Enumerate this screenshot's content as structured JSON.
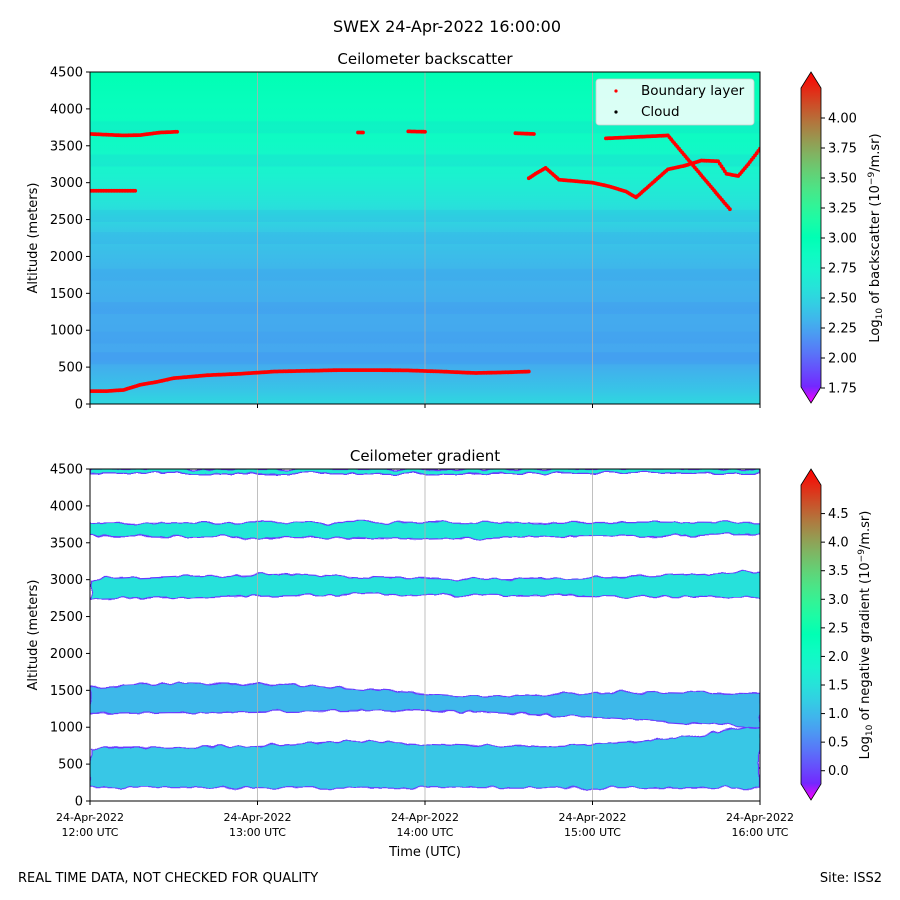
{
  "figure_title": "SWEX 24-Apr-2022 16:00:00",
  "footer_left": "REAL TIME DATA, NOT CHECKED FOR QUALITY",
  "footer_right": "Site: ISS2",
  "chart_data": [
    {
      "type": "heatmap",
      "title": "Ceilometer backscatter",
      "ylabel": "Altitude (meters)",
      "xlabel": "",
      "ylim": [
        0,
        4500
      ],
      "yticks": [
        0,
        500,
        1000,
        1500,
        2000,
        2500,
        3000,
        3500,
        4000,
        4500
      ],
      "xlim_hours_utc": [
        12,
        16
      ],
      "x_tick_hours": [
        12,
        13,
        14,
        15,
        16
      ],
      "x_tick_labels": [],
      "grid_x": true,
      "colorbar": {
        "label_prefix": "Log",
        "label_sub": "10",
        "label_mid": " of backscatter (10",
        "label_exp": "−9",
        "label_suffix": "/m.sr)",
        "range": [
          1.75,
          4.25
        ],
        "ticks": [
          "1.75",
          "2.00",
          "2.25",
          "2.50",
          "2.75",
          "3.00",
          "3.25",
          "3.50",
          "3.75",
          "4.00"
        ]
      },
      "legend": {
        "position": "top-right",
        "entries": [
          {
            "label": "Boundary layer",
            "color": "#ff0000"
          },
          {
            "label": "Cloud",
            "color": "#000000"
          }
        ]
      },
      "field_description": "altitude-dependent log10 backscatter; ~2.3 near surface to ~3.0 at 4500 m",
      "field_profile": [
        [
          0,
          2.55
        ],
        [
          200,
          2.45
        ],
        [
          600,
          2.32
        ],
        [
          1200,
          2.33
        ],
        [
          1800,
          2.38
        ],
        [
          2300,
          2.46
        ],
        [
          2700,
          2.62
        ],
        [
          3100,
          2.74
        ],
        [
          3600,
          2.86
        ],
        [
          4100,
          2.93
        ],
        [
          4500,
          3.0
        ]
      ],
      "series": [
        {
          "name": "Boundary layer (lower)",
          "color": "#ff0000",
          "x_hours": [
            12.0,
            12.1,
            12.2,
            12.3,
            12.4,
            12.5,
            12.7,
            12.9,
            13.1,
            13.3,
            13.5,
            13.7,
            13.9,
            14.1,
            14.3,
            14.5,
            14.62
          ],
          "y_m": [
            175,
            175,
            190,
            260,
            300,
            350,
            390,
            410,
            440,
            450,
            460,
            460,
            455,
            440,
            420,
            430,
            440
          ]
        },
        {
          "name": "Boundary layer (3650 m, early)",
          "color": "#ff0000",
          "x_hours": [
            12.0,
            12.1,
            12.2,
            12.3,
            12.35,
            12.42,
            12.52
          ],
          "y_m": [
            3660,
            3650,
            3640,
            3645,
            3660,
            3680,
            3690
          ]
        },
        {
          "name": "Boundary layer (2900 m, early)",
          "color": "#ff0000",
          "x_hours": [
            12.0,
            12.1,
            12.27
          ],
          "y_m": [
            2890,
            2890,
            2890
          ]
        },
        {
          "name": "Boundary layer (3680 m, segment 1)",
          "color": "#ff0000",
          "x_hours": [
            13.6,
            13.63
          ],
          "y_m": [
            3680,
            3680
          ]
        },
        {
          "name": "Boundary layer (3700 m, segment 2)",
          "color": "#ff0000",
          "x_hours": [
            13.9,
            14.0
          ],
          "y_m": [
            3695,
            3690
          ]
        },
        {
          "name": "Boundary layer (3670 m, segment 3)",
          "color": "#ff0000",
          "x_hours": [
            14.54,
            14.65
          ],
          "y_m": [
            3670,
            3660
          ]
        },
        {
          "name": "Boundary layer (upper, late)",
          "color": "#ff0000",
          "x_hours": [
            14.62,
            14.66,
            14.72,
            14.8,
            14.9,
            15.0,
            15.1,
            15.2,
            15.26,
            15.35,
            15.45,
            15.55,
            15.65,
            15.75,
            15.8,
            15.87,
            15.93,
            16.0
          ],
          "y_m": [
            3060,
            3120,
            3200,
            3040,
            3020,
            3000,
            2950,
            2880,
            2800,
            2980,
            3180,
            3230,
            3300,
            3290,
            3120,
            3090,
            3250,
            3460
          ]
        },
        {
          "name": "Boundary layer (isolated points)",
          "color": "#ff0000",
          "x_hours": [
            15.08,
            15.45,
            15.82
          ],
          "y_m": [
            3600,
            3640,
            2640
          ]
        }
      ]
    },
    {
      "type": "heatmap",
      "title": "Ceilometer gradient",
      "ylabel": "Altitude (meters)",
      "xlabel": "Time (UTC)",
      "ylim": [
        0,
        4500
      ],
      "yticks": [
        0,
        500,
        1000,
        1500,
        2000,
        2500,
        3000,
        3500,
        4000,
        4500
      ],
      "xlim_hours_utc": [
        12,
        16
      ],
      "x_tick_hours": [
        12,
        13,
        14,
        15,
        16
      ],
      "x_tick_labels": [
        {
          "date": "24-Apr-2022",
          "time": "12:00 UTC"
        },
        {
          "date": "24-Apr-2022",
          "time": "13:00 UTC"
        },
        {
          "date": "24-Apr-2022",
          "time": "14:00 UTC"
        },
        {
          "date": "24-Apr-2022",
          "time": "15:00 UTC"
        },
        {
          "date": "24-Apr-2022",
          "time": "16:00 UTC"
        }
      ],
      "grid_x": true,
      "colorbar": {
        "label_prefix": "Log",
        "label_sub": "10",
        "label_mid": " of negative gradient (10",
        "label_exp": "−9",
        "label_suffix": "/m.sr)",
        "range": [
          -0.25,
          5.0
        ],
        "ticks": [
          "0.0",
          "0.5",
          "1.0",
          "1.5",
          "2.0",
          "2.5",
          "3.0",
          "3.5",
          "4.0",
          "4.5"
        ]
      },
      "layers": [
        {
          "name": "surface layer",
          "value": 1.25,
          "x_hours": [
            12.0,
            16.0
          ],
          "bottom_m": [
            180,
            180
          ],
          "top_m": [
            720,
            720,
            730,
            760,
            800,
            790,
            760,
            740,
            760,
            800,
            880,
            1050
          ]
        },
        {
          "name": "lower band",
          "value": 1.1,
          "x_hours": [
            12.0,
            16.0
          ],
          "bottom_m": [
            1180,
            1200,
            1220,
            1230,
            1200,
            1150,
            1080,
            1000
          ],
          "top_m": [
            1550,
            1600,
            1580,
            1500,
            1420,
            1450,
            1480,
            1460
          ]
        },
        {
          "name": "mid band",
          "value": 1.55,
          "x_hours": [
            12.0,
            16.0
          ],
          "bottom_m": [
            2740,
            2760,
            2780,
            2800,
            2790,
            2780,
            2770,
            2760
          ],
          "top_m": [
            3000,
            3050,
            3080,
            3020,
            3000,
            3020,
            3050,
            3100
          ]
        },
        {
          "name": "upper band",
          "value": 1.65,
          "x_hours": [
            12.0,
            16.0
          ],
          "bottom_m": [
            3600,
            3550,
            3620
          ],
          "top_m": [
            3760,
            3780,
            3770
          ]
        },
        {
          "name": "top band",
          "value": 1.7,
          "x_hours": [
            12.0,
            16.0
          ],
          "bottom_m": [
            4440
          ],
          "top_m": [
            4500
          ]
        }
      ]
    }
  ]
}
